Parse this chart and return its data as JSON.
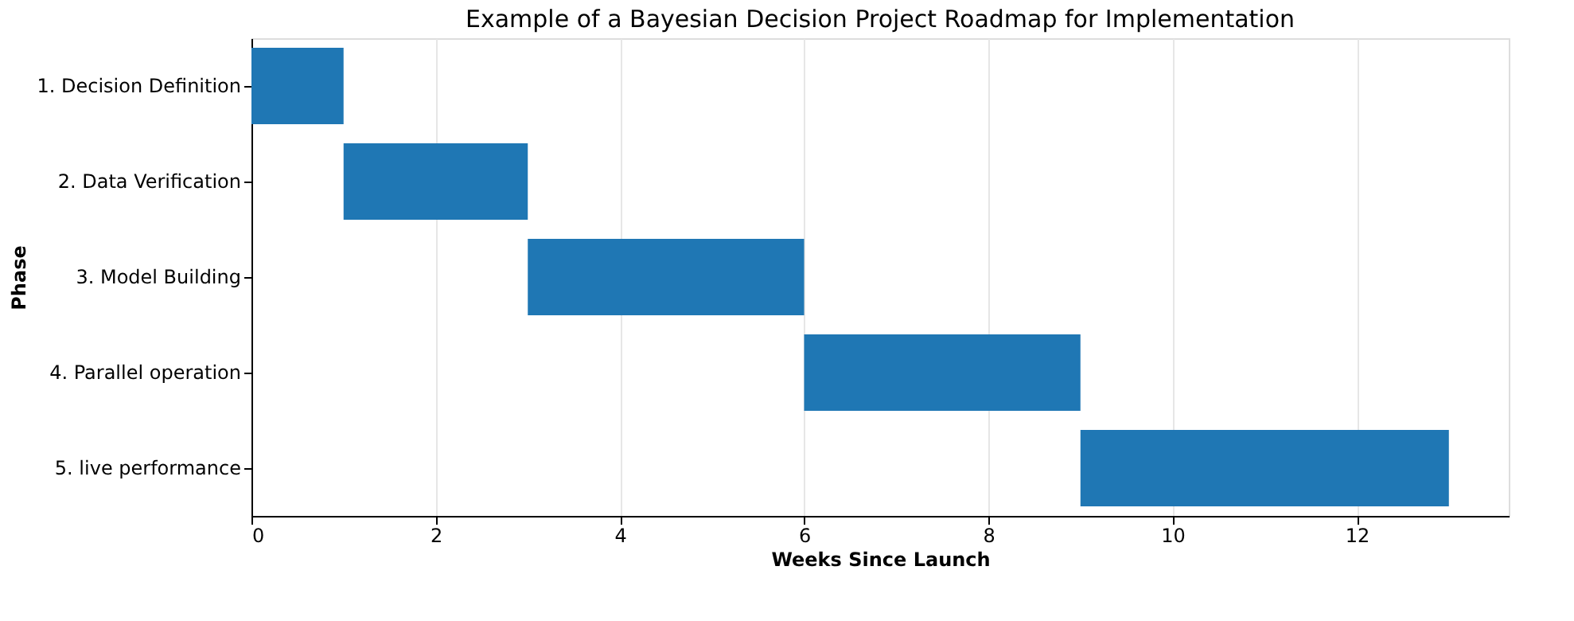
{
  "chart_data": {
    "type": "bar",
    "orientation": "horizontal",
    "title": "Example of a Bayesian Decision Project Roadmap for Implementation",
    "xlabel": "Weeks Since Launch",
    "ylabel": "Phase",
    "categories": [
      "1. Decision Definition",
      "2. Data Verification",
      "3. Model Building",
      "4. Parallel operation",
      "5. live performance"
    ],
    "base": [
      0,
      1,
      3,
      6,
      9
    ],
    "values": [
      1,
      2,
      3,
      3,
      4
    ],
    "color": "#1f77b4",
    "xlim": [
      0,
      13.65
    ],
    "xticks": [
      0,
      2,
      4,
      6,
      8,
      10,
      12
    ],
    "grid": "x"
  }
}
